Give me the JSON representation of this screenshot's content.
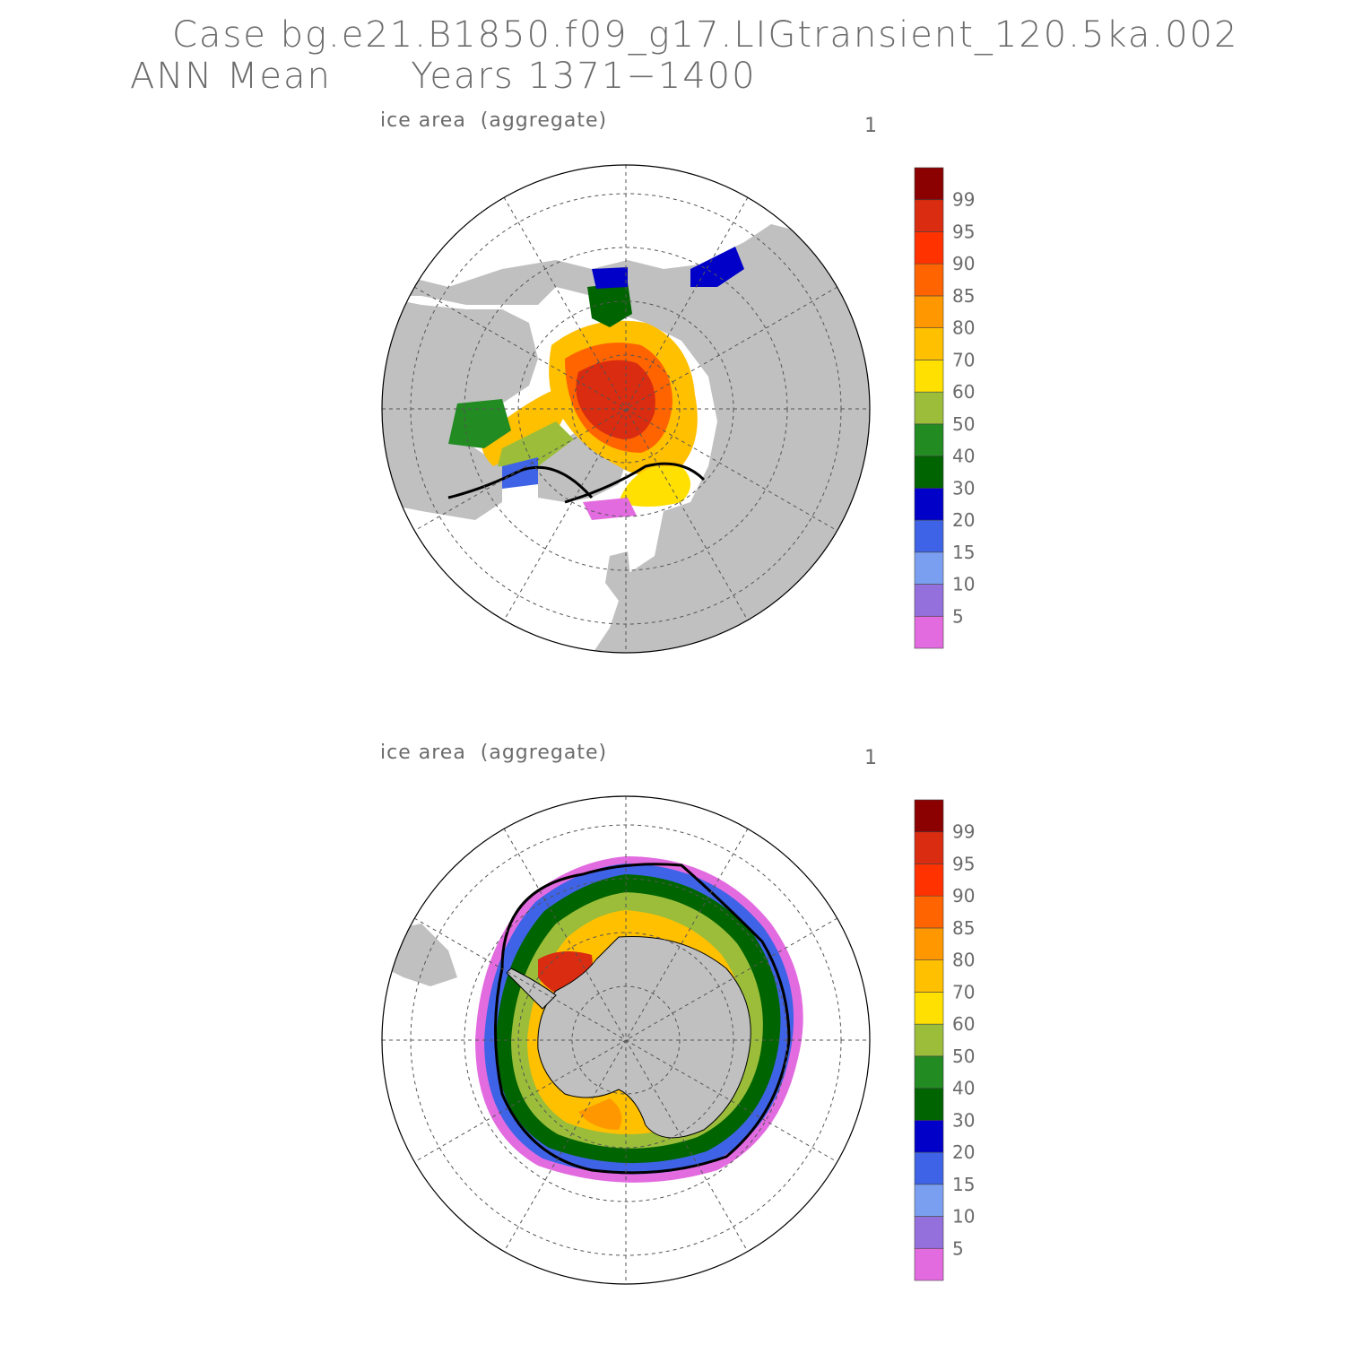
{
  "header": {
    "case": "Case bg.e21.B1850.f09_g17.LIGtransient_120.5ka.002",
    "period": "ANN Mean      Years 1371−1400"
  },
  "panels": [
    {
      "label": "ice area  (aggregate)",
      "number": "1",
      "region": "Northern Hemisphere"
    },
    {
      "label": "ice area  (aggregate)",
      "number": "1",
      "region": "Southern Hemisphere"
    }
  ],
  "colorbar": {
    "labels": [
      "5",
      "10",
      "15",
      "20",
      "30",
      "40",
      "50",
      "60",
      "70",
      "80",
      "85",
      "90",
      "95",
      "99"
    ],
    "colors": [
      "#e36be0",
      "#9370db",
      "#7b9ff0",
      "#3f63e6",
      "#0000c8",
      "#006400",
      "#228b22",
      "#9bbd3a",
      "#ffe000",
      "#ffc000",
      "#ff9800",
      "#ff6400",
      "#ff3200",
      "#d92c10",
      "#8b0000"
    ]
  },
  "colors": {
    "land": "#c0c0c0",
    "ocean": "#ffffff",
    "text": "#6b6b6b"
  }
}
